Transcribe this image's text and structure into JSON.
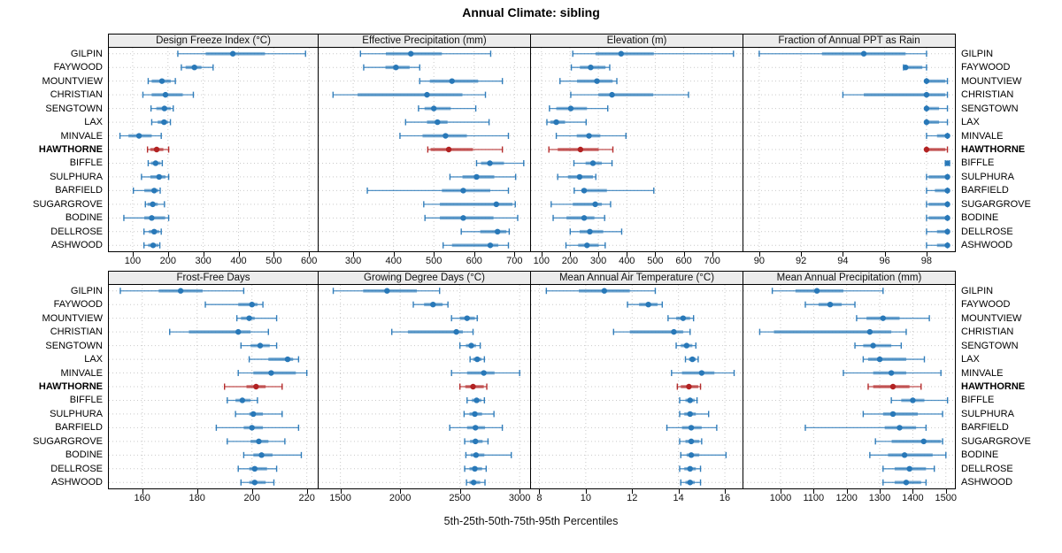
{
  "title": "Annual Climate: sibling",
  "caption": "5th-25th-50th-75th-95th Percentiles",
  "stations": [
    "GILPIN",
    "FAYWOOD",
    "MOUNTVIEW",
    "CHRISTIAN",
    "SENGTOWN",
    "LAX",
    "MINVALE",
    "HAWTHORNE",
    "BIFFLE",
    "SULPHURA",
    "BARFIELD",
    "SUGARGROVE",
    "BODINE",
    "DELLROSE",
    "ASHWOOD"
  ],
  "highlight_station": "HAWTHORNE",
  "colors": {
    "series": "#2878b8",
    "highlight": "#b22222",
    "grid": "#c9c9c9",
    "strip_bg": "#ececec",
    "border": "#000000"
  },
  "chart_data": [
    {
      "type": "dotplot-percentiles",
      "row": 0,
      "col": 0,
      "title": "Design Freeze Index (°C)",
      "xlim": [
        30,
        627
      ],
      "ticks": [
        100,
        200,
        300,
        400,
        500,
        600
      ],
      "values": {
        "GILPIN": [
          228,
          307,
          384,
          475,
          590
        ],
        "FAYWOOD": [
          238,
          250,
          275,
          295,
          328
        ],
        "MOUNTVIEW": [
          144,
          154,
          183,
          208,
          221
        ],
        "CHRISTIAN": [
          129,
          154,
          193,
          242,
          272
        ],
        "SENGTOWN": [
          152,
          167,
          190,
          208,
          215
        ],
        "LAX": [
          154,
          171,
          189,
          200,
          207
        ],
        "MINVALE": [
          64,
          88,
          118,
          154,
          181
        ],
        "HAWTHORNE": [
          142,
          150,
          168,
          187,
          202
        ],
        "BIFFLE": [
          144,
          152,
          165,
          179,
          184
        ],
        "SULPHURA": [
          125,
          150,
          175,
          193,
          202
        ],
        "BARFIELD": [
          102,
          133,
          161,
          173,
          178
        ],
        "SUGARGROVE": [
          136,
          142,
          157,
          171,
          190
        ],
        "BODINE": [
          75,
          133,
          154,
          192,
          202
        ],
        "DELLROSE": [
          132,
          146,
          161,
          175,
          181
        ],
        "ASHWOOD": [
          132,
          144,
          158,
          173,
          177
        ]
      }
    },
    {
      "type": "dotplot-percentiles",
      "row": 0,
      "col": 1,
      "title": "Effective Precipitation (mm)",
      "xlim": [
        212,
        741
      ],
      "ticks": [
        300,
        400,
        500,
        600,
        700
      ],
      "values": {
        "GILPIN": [
          318,
          381,
          443,
          520,
          641
        ],
        "FAYWOOD": [
          326,
          380,
          406,
          440,
          465
        ],
        "MOUNTVIEW": [
          465,
          490,
          545,
          610,
          670
        ],
        "CHRISTIAN": [
          250,
          311,
          483,
          571,
          628
        ],
        "SENGTOWN": [
          462,
          477,
          500,
          542,
          604
        ],
        "LAX": [
          430,
          483,
          509,
          534,
          637
        ],
        "MINVALE": [
          416,
          472,
          529,
          582,
          685
        ],
        "HAWTHORNE": [
          485,
          492,
          537,
          597,
          670
        ],
        "BIFFLE": [
          606,
          617,
          639,
          674,
          723
        ],
        "SULPHURA": [
          540,
          571,
          606,
          650,
          703
        ],
        "BARFIELD": [
          335,
          520,
          573,
          640,
          685
        ],
        "SUGARGROVE": [
          475,
          515,
          655,
          695,
          702
        ],
        "BODINE": [
          478,
          515,
          573,
          648,
          708
        ],
        "DELLROSE": [
          568,
          615,
          658,
          680,
          687
        ],
        "ASHWOOD": [
          523,
          545,
          640,
          660,
          685
        ]
      }
    },
    {
      "type": "dotplot-percentiles",
      "row": 0,
      "col": 2,
      "title": "Elevation (m)",
      "xlim": [
        60,
        810
      ],
      "ticks": [
        100,
        200,
        300,
        400,
        500,
        600,
        700
      ],
      "values": {
        "GILPIN": [
          210,
          290,
          380,
          495,
          775
        ],
        "FAYWOOD": [
          205,
          235,
          273,
          325,
          340
        ],
        "MOUNTVIEW": [
          165,
          225,
          295,
          350,
          365
        ],
        "CHRISTIAN": [
          203,
          300,
          348,
          493,
          617
        ],
        "SENGTOWN": [
          128,
          152,
          203,
          260,
          333
        ],
        "LAX": [
          119,
          131,
          152,
          183,
          257
        ],
        "MINVALE": [
          152,
          224,
          267,
          307,
          397
        ],
        "HAWTHORNE": [
          126,
          157,
          237,
          301,
          351
        ],
        "BIFFLE": [
          214,
          255,
          281,
          312,
          348
        ],
        "SULPHURA": [
          157,
          193,
          234,
          281,
          291
        ],
        "BARFIELD": [
          215,
          240,
          250,
          330,
          495
        ],
        "SUGARGROVE": [
          134,
          210,
          289,
          312,
          343
        ],
        "BODINE": [
          141,
          188,
          250,
          286,
          322
        ],
        "DELLROSE": [
          201,
          234,
          270,
          317,
          382
        ],
        "ASHWOOD": [
          186,
          229,
          260,
          301,
          324
        ]
      }
    },
    {
      "type": "dotplot-percentiles",
      "row": 0,
      "col": 3,
      "title": "Fraction of Annual PPT as Rain",
      "xlim": [
        89.2,
        99.4
      ],
      "ticks": [
        90,
        92,
        94,
        96,
        98
      ],
      "values": {
        "GILPIN": [
          90,
          93,
          95,
          97,
          98
        ],
        "FAYWOOD": [
          96.9,
          97,
          97,
          97.8,
          98
        ],
        "MOUNTVIEW": [
          98,
          98,
          98,
          98.9,
          99
        ],
        "CHRISTIAN": [
          94,
          95,
          98,
          98.9,
          99
        ],
        "SENGTOWN": [
          98,
          98,
          98,
          98.6,
          99
        ],
        "LAX": [
          98,
          98,
          98,
          98.6,
          99
        ],
        "MINVALE": [
          98,
          98.5,
          99,
          99,
          99
        ],
        "HAWTHORNE": [
          98,
          98,
          98,
          98.9,
          99
        ],
        "BIFFLE": [
          98.9,
          99,
          99,
          99,
          99.1
        ],
        "SULPHURA": [
          98,
          98.1,
          99,
          99,
          99
        ],
        "BARFIELD": [
          98,
          98.4,
          99,
          99,
          99
        ],
        "SUGARGROVE": [
          98,
          98.1,
          99,
          99,
          99
        ],
        "BODINE": [
          98,
          98.1,
          99,
          99,
          99
        ],
        "DELLROSE": [
          98,
          98.5,
          99,
          99,
          99
        ],
        "ASHWOOD": [
          98,
          98.5,
          99,
          99,
          99
        ]
      }
    },
    {
      "type": "dotplot-percentiles",
      "row": 1,
      "col": 0,
      "title": "Frost-Free Days",
      "xlim": [
        147.5,
        224.3
      ],
      "ticks": [
        160,
        180,
        200,
        220
      ],
      "values": {
        "GILPIN": [
          152,
          166,
          174,
          182,
          197
        ],
        "FAYWOOD": [
          183,
          195,
          200,
          202,
          204
        ],
        "MOUNTVIEW": [
          194.5,
          196,
          199,
          201,
          209
        ],
        "CHRISTIAN": [
          170,
          177,
          195,
          199.5,
          206
        ],
        "SENGTOWN": [
          196,
          199.5,
          203,
          206.5,
          209
        ],
        "LAX": [
          199,
          206,
          213,
          215,
          217
        ],
        "MINVALE": [
          195,
          200.5,
          207,
          216,
          220
        ],
        "HAWTHORNE": [
          190,
          198,
          201.5,
          205,
          211
        ],
        "BIFFLE": [
          191,
          194,
          196.5,
          199.5,
          202
        ],
        "SULPHURA": [
          194,
          199,
          200.5,
          204,
          211
        ],
        "BARFIELD": [
          187,
          197,
          200,
          204,
          217
        ],
        "SUGARGROVE": [
          191,
          199.5,
          202.5,
          206,
          212
        ],
        "BODINE": [
          197,
          200.5,
          203.5,
          207.5,
          218
        ],
        "DELLROSE": [
          195,
          199,
          201,
          205.5,
          209
        ],
        "ASHWOOD": [
          196,
          199,
          201,
          205,
          208
        ]
      }
    },
    {
      "type": "dotplot-percentiles",
      "row": 1,
      "col": 1,
      "title": "Growing Degree Days (°C)",
      "xlim": [
        1310,
        3095
      ],
      "ticks": [
        1500,
        2000,
        2500,
        3000
      ],
      "values": {
        "GILPIN": [
          1440,
          1690,
          1890,
          2140,
          2330
        ],
        "FAYWOOD": [
          2110,
          2200,
          2275,
          2355,
          2400
        ],
        "MOUNTVIEW": [
          2430,
          2500,
          2560,
          2625,
          2645
        ],
        "CHRISTIAN": [
          1930,
          2065,
          2470,
          2525,
          2610
        ],
        "SENGTOWN": [
          2500,
          2550,
          2595,
          2635,
          2670
        ],
        "LAX": [
          2585,
          2610,
          2645,
          2680,
          2705
        ],
        "MINVALE": [
          2430,
          2560,
          2700,
          2790,
          3000
        ],
        "HAWTHORNE": [
          2500,
          2545,
          2610,
          2700,
          2725
        ],
        "BIFFLE": [
          2560,
          2600,
          2640,
          2680,
          2705
        ],
        "SULPHURA": [
          2535,
          2580,
          2625,
          2685,
          2785
        ],
        "BARFIELD": [
          2415,
          2560,
          2630,
          2710,
          2855
        ],
        "SUGARGROVE": [
          2540,
          2585,
          2630,
          2690,
          2735
        ],
        "BODINE": [
          2550,
          2590,
          2635,
          2705,
          2930
        ],
        "DELLROSE": [
          2540,
          2580,
          2625,
          2685,
          2720
        ],
        "ASHWOOD": [
          2555,
          2580,
          2615,
          2670,
          2710
        ]
      }
    },
    {
      "type": "dotplot-percentiles",
      "row": 1,
      "col": 2,
      "title": "Mean Annual Air Temperature (°C)",
      "xlim": [
        7.6,
        16.8
      ],
      "ticks": [
        8,
        10,
        12,
        14,
        16
      ],
      "values": {
        "GILPIN": [
          8.3,
          9.7,
          10.8,
          11.9,
          13.0
        ],
        "FAYWOOD": [
          11.8,
          12.3,
          12.7,
          13.1,
          13.3
        ],
        "MOUNTVIEW": [
          13.55,
          13.9,
          14.2,
          14.5,
          14.65
        ],
        "CHRISTIAN": [
          11.2,
          11.9,
          13.8,
          14.2,
          14.5
        ],
        "SENGTOWN": [
          13.9,
          14.1,
          14.35,
          14.6,
          14.75
        ],
        "LAX": [
          14.3,
          14.45,
          14.6,
          14.75,
          14.85
        ],
        "MINVALE": [
          13.7,
          14.15,
          15.0,
          15.55,
          16.4
        ],
        "HAWTHORNE": [
          13.95,
          14.1,
          14.45,
          14.85,
          14.95
        ],
        "BIFFLE": [
          14.05,
          14.3,
          14.5,
          14.7,
          14.8
        ],
        "SULPHURA": [
          14.05,
          14.25,
          14.5,
          14.75,
          15.3
        ],
        "BARFIELD": [
          13.5,
          14.15,
          14.55,
          15.0,
          15.65
        ],
        "SUGARGROVE": [
          14.05,
          14.3,
          14.55,
          14.9,
          15.0
        ],
        "BODINE": [
          14.1,
          14.35,
          14.55,
          14.9,
          16.05
        ],
        "DELLROSE": [
          14.05,
          14.25,
          14.5,
          14.75,
          14.95
        ],
        "ASHWOOD": [
          14.1,
          14.3,
          14.5,
          14.7,
          14.95
        ]
      }
    },
    {
      "type": "dotplot-percentiles",
      "row": 1,
      "col": 3,
      "title": "Mean Annual Precipitation (mm)",
      "xlim": [
        885,
        1530
      ],
      "ticks": [
        1000,
        1100,
        1200,
        1300,
        1400,
        1500
      ],
      "values": {
        "GILPIN": [
          975,
          1045,
          1110,
          1190,
          1310
        ],
        "FAYWOOD": [
          1075,
          1115,
          1150,
          1185,
          1225
        ],
        "MOUNTVIEW": [
          1230,
          1260,
          1310,
          1360,
          1450
        ],
        "CHRISTIAN": [
          937,
          980,
          1270,
          1335,
          1380
        ],
        "SENGTOWN": [
          1225,
          1250,
          1280,
          1335,
          1365
        ],
        "LAX": [
          1250,
          1265,
          1300,
          1380,
          1435
        ],
        "MINVALE": [
          1190,
          1280,
          1335,
          1380,
          1485
        ],
        "HAWTHORNE": [
          1265,
          1280,
          1340,
          1390,
          1425
        ],
        "BIFFLE": [
          1335,
          1365,
          1400,
          1435,
          1505
        ],
        "SULPHURA": [
          1250,
          1310,
          1340,
          1415,
          1490
        ],
        "BARFIELD": [
          1075,
          1315,
          1360,
          1410,
          1440
        ],
        "SUGARGROVE": [
          1287,
          1336,
          1433,
          1485,
          1490
        ],
        "BODINE": [
          1270,
          1325,
          1375,
          1460,
          1500
        ],
        "DELLROSE": [
          1310,
          1345,
          1390,
          1440,
          1465
        ],
        "ASHWOOD": [
          1310,
          1345,
          1380,
          1425,
          1440
        ]
      }
    }
  ]
}
